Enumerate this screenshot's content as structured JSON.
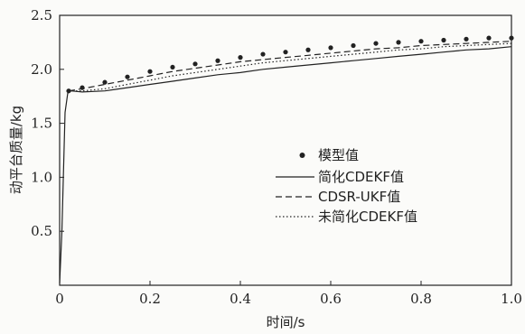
{
  "chart_data": {
    "type": "line",
    "title": "",
    "xlabel": "时间/s",
    "ylabel": "动平台质量/kg",
    "xlim": [
      0,
      1.0
    ],
    "ylim": [
      0,
      2.5
    ],
    "x_ticks": [
      "0",
      "0.2",
      "0.4",
      "0.6",
      "0.8",
      "1.0"
    ],
    "y_ticks": [
      "0.5",
      "1.0",
      "1.5",
      "2.0",
      "2.5"
    ],
    "legend_position": "center-right",
    "series": [
      {
        "name": "模型值",
        "style": "dots",
        "color": "#222222",
        "x": [
          0.02,
          0.05,
          0.1,
          0.15,
          0.2,
          0.25,
          0.3,
          0.35,
          0.4,
          0.45,
          0.5,
          0.55,
          0.6,
          0.65,
          0.7,
          0.75,
          0.8,
          0.85,
          0.9,
          0.95,
          1.0
        ],
        "values": [
          1.8,
          1.83,
          1.88,
          1.93,
          1.98,
          2.02,
          2.05,
          2.08,
          2.11,
          2.14,
          2.16,
          2.18,
          2.2,
          2.22,
          2.24,
          2.25,
          2.26,
          2.27,
          2.28,
          2.29,
          2.29
        ]
      },
      {
        "name": "简化CDEKF值",
        "style": "solid",
        "color": "#222222",
        "x": [
          0.0,
          0.005,
          0.012,
          0.018,
          0.025,
          0.05,
          0.1,
          0.15,
          0.2,
          0.25,
          0.3,
          0.35,
          0.4,
          0.45,
          0.5,
          0.55,
          0.6,
          0.65,
          0.7,
          0.75,
          0.8,
          0.85,
          0.9,
          0.95,
          1.0
        ],
        "values": [
          0.02,
          0.5,
          1.6,
          1.78,
          1.8,
          1.79,
          1.8,
          1.83,
          1.86,
          1.89,
          1.92,
          1.95,
          1.97,
          2.0,
          2.02,
          2.04,
          2.06,
          2.08,
          2.1,
          2.12,
          2.14,
          2.16,
          2.18,
          2.19,
          2.21
        ]
      },
      {
        "name": "CDSR-UKF值",
        "style": "dashed",
        "color": "#222222",
        "x": [
          0.02,
          0.05,
          0.1,
          0.15,
          0.2,
          0.25,
          0.3,
          0.35,
          0.4,
          0.45,
          0.5,
          0.55,
          0.6,
          0.65,
          0.7,
          0.75,
          0.8,
          0.85,
          0.9,
          0.95,
          1.0
        ],
        "values": [
          1.8,
          1.82,
          1.86,
          1.9,
          1.94,
          1.98,
          2.01,
          2.04,
          2.07,
          2.09,
          2.11,
          2.13,
          2.15,
          2.17,
          2.19,
          2.2,
          2.22,
          2.23,
          2.24,
          2.25,
          2.26
        ]
      },
      {
        "name": "未简化CDEKF值",
        "style": "dotted",
        "color": "#222222",
        "x": [
          0.02,
          0.05,
          0.1,
          0.15,
          0.2,
          0.25,
          0.3,
          0.35,
          0.4,
          0.45,
          0.5,
          0.55,
          0.6,
          0.65,
          0.7,
          0.75,
          0.8,
          0.85,
          0.9,
          0.95,
          1.0
        ],
        "values": [
          1.8,
          1.8,
          1.82,
          1.86,
          1.9,
          1.94,
          1.97,
          2.0,
          2.03,
          2.06,
          2.08,
          2.1,
          2.12,
          2.14,
          2.16,
          2.18,
          2.19,
          2.21,
          2.22,
          2.23,
          2.24
        ]
      }
    ]
  }
}
